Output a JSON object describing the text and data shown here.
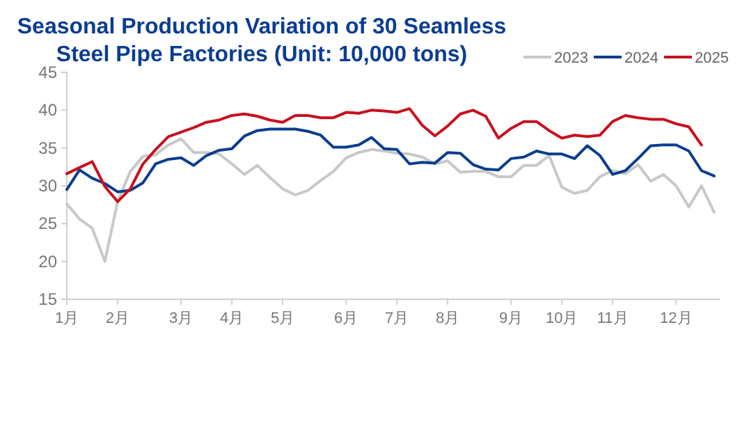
{
  "chart_data": {
    "type": "line",
    "title": "Seasonal Production Variation of 30 Seamless Steel Pipe Factories (Unit: 10,000 tons)",
    "categories": [
      "1月",
      null,
      null,
      null,
      "2月",
      null,
      null,
      null,
      null,
      "3月",
      null,
      null,
      null,
      "4月",
      null,
      null,
      null,
      "5月",
      null,
      null,
      null,
      null,
      "6月",
      null,
      null,
      null,
      "7月",
      null,
      null,
      null,
      "8月",
      null,
      null,
      null,
      null,
      "9月",
      null,
      null,
      null,
      "10月",
      null,
      null,
      null,
      "11月",
      null,
      null,
      null,
      null,
      "12月",
      null,
      null,
      null
    ],
    "series": [
      {
        "name": "2023",
        "color": "#c8c8c8",
        "values": [
          27.6,
          25.6,
          24.4,
          20,
          27.9,
          31.9,
          33.9,
          34.1,
          35.4,
          36.2,
          34.4,
          34.4,
          34.2,
          32.9,
          31.5,
          32.7,
          31.1,
          29.6,
          28.8,
          29.4,
          30.7,
          31.9,
          33.7,
          34.4,
          34.8,
          34.6,
          34.3,
          34.2,
          33.8,
          32.9,
          33.3,
          31.8,
          31.9,
          31.9,
          31.2,
          31.2,
          32.7,
          32.7,
          34,
          29.8,
          29,
          29.4,
          31.2,
          32,
          31.6,
          32.8,
          30.6,
          31.5,
          30,
          27.2,
          30,
          26.5
        ]
      },
      {
        "name": "2024",
        "color": "#0a3d8f",
        "values": [
          29.5,
          32.1,
          31,
          30.3,
          29.2,
          29.4,
          30.4,
          32.9,
          33.5,
          33.7,
          32.7,
          34,
          34.7,
          34.9,
          36.6,
          37.3,
          37.5,
          37.5,
          37.5,
          37.2,
          36.7,
          35.1,
          35.1,
          35.4,
          36.4,
          34.9,
          34.8,
          32.9,
          33.1,
          33,
          34.4,
          34.3,
          32.8,
          32.2,
          32.1,
          33.6,
          33.8,
          34.6,
          34.2,
          34.2,
          33.6,
          35.3,
          34,
          31.5,
          32,
          33.6,
          35.3,
          35.4,
          35.4,
          34.6,
          32,
          31.3
        ]
      },
      {
        "name": "2025",
        "color": "#c8101e",
        "values": [
          31.6,
          32.4,
          33.2,
          29.9,
          27.9,
          29.6,
          32.9,
          34.8,
          36.5,
          37.1,
          37.7,
          38.4,
          38.7,
          39.3,
          39.5,
          39.2,
          38.7,
          38.4,
          39.3,
          39.3,
          39,
          39,
          39.7,
          39.6,
          40,
          39.9,
          39.7,
          40.2,
          38,
          36.6,
          37.9,
          39.5,
          40,
          39.2,
          36.3,
          37.6,
          38.5,
          38.5,
          37.3,
          36.3,
          36.7,
          36.5,
          36.7,
          38.5,
          39.3,
          39,
          38.8,
          38.8,
          38.2,
          37.8,
          35.4,
          null
        ]
      }
    ],
    "ylim": [
      15,
      45
    ],
    "yticks": [
      15,
      20,
      25,
      30,
      35,
      40,
      45
    ],
    "grid": false,
    "legend": "top right",
    "marker": "none",
    "line_style": "solid"
  }
}
